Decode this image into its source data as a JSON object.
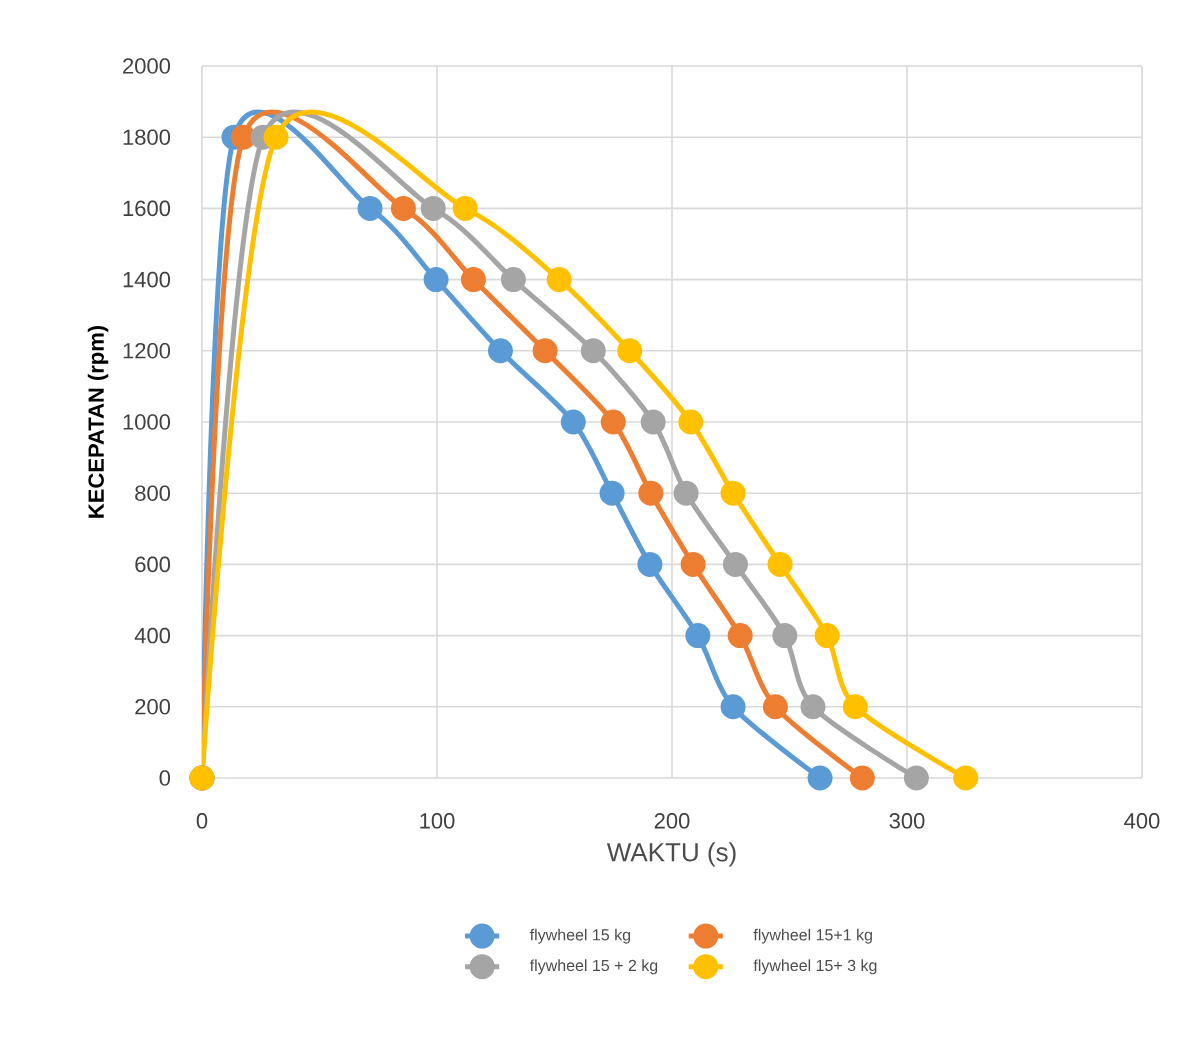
{
  "chart_data": {
    "type": "line",
    "xlabel": "WAKTU (s)",
    "ylabel": "KECEPATAN (rpm)",
    "xlim": [
      0,
      400
    ],
    "ylim": [
      0,
      2000
    ],
    "xticks": [
      0,
      100,
      200,
      300,
      400
    ],
    "yticks": [
      0,
      200,
      400,
      600,
      800,
      1000,
      1200,
      1400,
      1600,
      1800,
      2000
    ],
    "grid": true,
    "legend": "bottom",
    "marker": "circle",
    "line_style": "solid",
    "series": [
      {
        "name": "flywheel 15 kg",
        "color": "#5b9bd5",
        "x": [
          0,
          13.6,
          71.5,
          99.6,
          127,
          158,
          174.5,
          190.6,
          211,
          226,
          263
        ],
        "values": [
          0,
          1800,
          1600,
          1400,
          1200,
          1000,
          800,
          600,
          400,
          200,
          0
        ]
      },
      {
        "name": "flywheel 15+1 kg",
        "color": "#ed7d31",
        "x": [
          0,
          17.6,
          85.7,
          115.5,
          146,
          175,
          191,
          209,
          229,
          244,
          281
        ],
        "values": [
          0,
          1800,
          1600,
          1400,
          1200,
          1000,
          800,
          600,
          400,
          200,
          0
        ]
      },
      {
        "name": "flywheel 15 + 2 kg",
        "color": "#a5a5a5",
        "x": [
          0,
          26,
          98.4,
          132.5,
          166.5,
          192,
          206,
          227,
          248,
          260,
          304
        ],
        "values": [
          0,
          1800,
          1600,
          1400,
          1200,
          1000,
          800,
          600,
          400,
          200,
          0
        ]
      },
      {
        "name": "flywheel 15+ 3 kg",
        "color": "#ffc000",
        "x": [
          0,
          31.5,
          112,
          152,
          182,
          208,
          226,
          246,
          266,
          278,
          325
        ],
        "values": [
          0,
          1800,
          1600,
          1400,
          1200,
          1000,
          800,
          600,
          400,
          200,
          0
        ]
      }
    ]
  }
}
